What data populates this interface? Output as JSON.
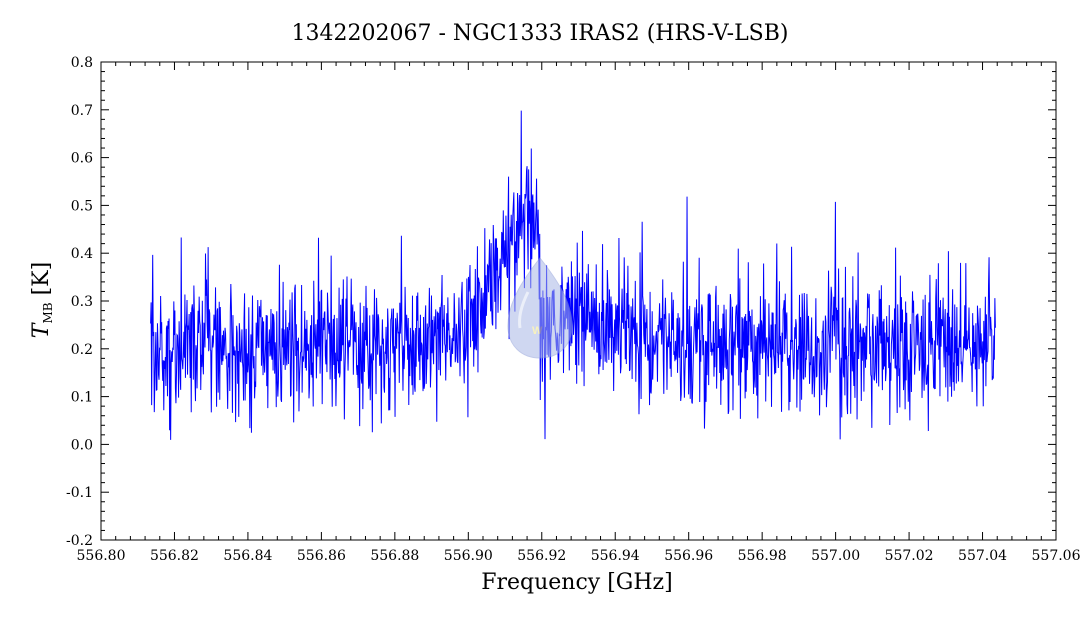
{
  "chart_data": {
    "type": "line",
    "title": "1342202067 - NGC1333 IRAS2 (HRS-V-LSB)",
    "xlabel": "Frequency [GHz]",
    "ylabel_main": "T",
    "ylabel_sub": "MB",
    "ylabel_unit": "[K]",
    "xlim": [
      556.8,
      557.06
    ],
    "ylim": [
      -0.2,
      0.8
    ],
    "xticks": [
      "556.80",
      "556.82",
      "556.84",
      "556.86",
      "556.88",
      "556.90",
      "556.92",
      "556.94",
      "556.96",
      "556.98",
      "557.00",
      "557.02",
      "557.04",
      "557.06"
    ],
    "yticks": [
      "-0.2",
      "-0.1",
      "0.0",
      "0.1",
      "0.2",
      "0.3",
      "0.4",
      "0.5",
      "0.6",
      "0.7",
      "0.8"
    ],
    "xtick_values": [
      556.8,
      556.82,
      556.84,
      556.86,
      556.88,
      556.9,
      556.92,
      556.94,
      556.96,
      556.98,
      557.0,
      557.02,
      557.04,
      557.06
    ],
    "ytick_values": [
      -0.2,
      -0.1,
      0.0,
      0.1,
      0.2,
      0.3,
      0.4,
      0.5,
      0.6,
      0.7,
      0.8
    ],
    "x_range_data": [
      556.8135,
      557.0435
    ],
    "baseline": 0.2,
    "noise_rms": 0.075,
    "series": [
      {
        "color": "#0000ff",
        "x": [
          556.8135,
          556.86,
          556.88,
          556.9,
          556.905,
          556.91,
          556.915,
          556.918,
          556.92,
          556.925,
          556.93,
          556.94,
          556.96,
          557.0,
          557.0435
        ],
        "y": [
          0.2,
          0.2,
          0.21,
          0.24,
          0.3,
          0.38,
          0.5,
          0.48,
          0.24,
          0.24,
          0.28,
          0.24,
          0.22,
          0.21,
          0.2
        ]
      }
    ]
  }
}
